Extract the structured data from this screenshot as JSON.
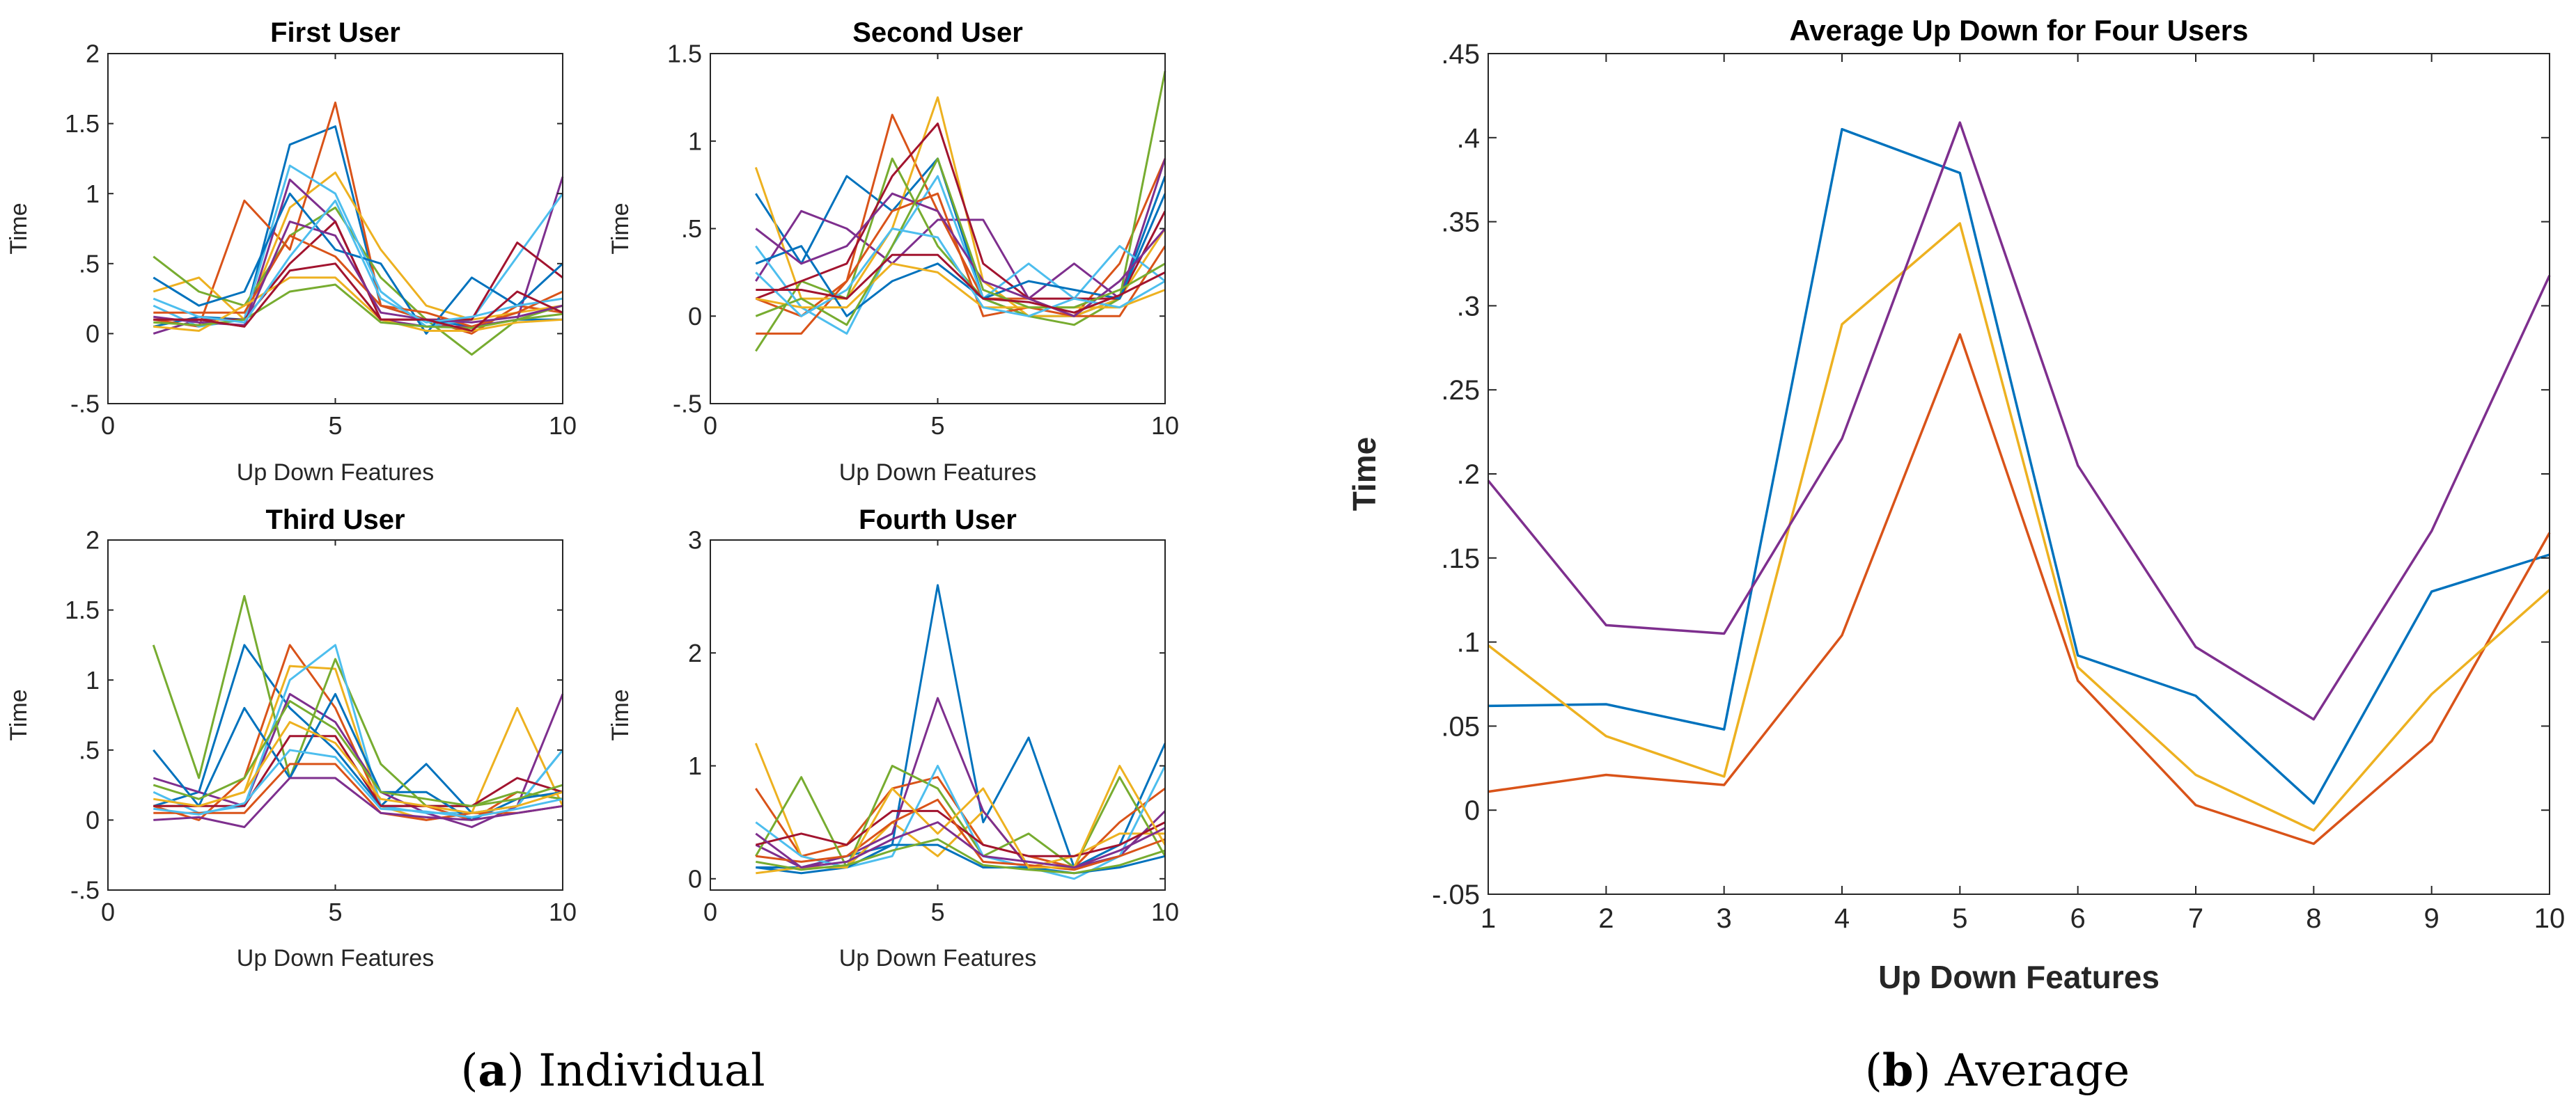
{
  "palette": [
    "#0072BD",
    "#D95319",
    "#EDB120",
    "#7E2F8E",
    "#77AC30",
    "#4DBEEE",
    "#A2142F"
  ],
  "captions": {
    "a": {
      "letter": "a",
      "text": "Individual"
    },
    "b": {
      "letter": "b",
      "text": "Average"
    }
  },
  "chart_data": [
    {
      "id": "first",
      "type": "line",
      "title": "First User",
      "xlabel": "Up Down Features",
      "ylabel": "Time",
      "xlim": [
        0,
        10
      ],
      "ylim": [
        -0.5,
        2
      ],
      "xticks": [
        0,
        5,
        10
      ],
      "yticks": [
        -0.5,
        0,
        0.5,
        1,
        1.5,
        2
      ],
      "x": [
        1,
        2,
        3,
        4,
        5,
        6,
        7,
        8,
        9,
        10
      ],
      "grid": false,
      "series": [
        {
          "values": [
            0.05,
            0.12,
            0.1,
            1.35,
            1.48,
            0.2,
            0.1,
            0.05,
            0.1,
            0.1
          ]
        },
        {
          "values": [
            0.1,
            0.05,
            0.95,
            0.6,
            1.65,
            0.2,
            0.1,
            0.0,
            0.2,
            0.15
          ]
        },
        {
          "values": [
            0.3,
            0.4,
            0.1,
            0.9,
            1.15,
            0.6,
            0.2,
            0.1,
            0.15,
            0.2
          ]
        },
        {
          "values": [
            0.0,
            0.1,
            0.05,
            1.1,
            0.8,
            0.1,
            0.05,
            0.05,
            0.1,
            1.12
          ]
        },
        {
          "values": [
            0.55,
            0.3,
            0.2,
            0.7,
            0.9,
            0.4,
            0.1,
            -0.15,
            0.1,
            0.2
          ]
        },
        {
          "values": [
            0.2,
            0.05,
            0.1,
            1.2,
            1.0,
            0.3,
            0.05,
            0.1,
            0.55,
            1.0
          ]
        },
        {
          "values": [
            0.1,
            0.1,
            0.1,
            0.5,
            0.8,
            0.1,
            0.1,
            0.1,
            0.65,
            0.4
          ]
        },
        {
          "values": [
            0.4,
            0.2,
            0.3,
            1.0,
            0.6,
            0.5,
            0.0,
            0.4,
            0.2,
            0.5
          ]
        },
        {
          "values": [
            0.15,
            0.15,
            0.15,
            0.7,
            0.55,
            0.2,
            0.15,
            0.05,
            0.15,
            0.3
          ]
        },
        {
          "values": [
            0.05,
            0.02,
            0.2,
            0.4,
            0.4,
            0.1,
            0.02,
            0.02,
            0.08,
            0.1
          ]
        },
        {
          "values": [
            0.12,
            0.08,
            0.06,
            0.8,
            0.7,
            0.15,
            0.1,
            0.08,
            0.12,
            0.2
          ]
        },
        {
          "values": [
            0.08,
            0.06,
            0.1,
            0.3,
            0.35,
            0.08,
            0.05,
            0.04,
            0.1,
            0.14
          ]
        },
        {
          "values": [
            0.25,
            0.12,
            0.08,
            0.55,
            0.95,
            0.25,
            0.08,
            0.12,
            0.2,
            0.25
          ]
        },
        {
          "values": [
            0.1,
            0.1,
            0.05,
            0.45,
            0.5,
            0.1,
            0.1,
            0.02,
            0.3,
            0.15
          ]
        }
      ]
    },
    {
      "id": "second",
      "type": "line",
      "title": "Second User",
      "xlabel": "Up Down Features",
      "ylabel": "Time",
      "xlim": [
        0,
        10
      ],
      "ylim": [
        -0.5,
        1.5
      ],
      "xticks": [
        0,
        5,
        10
      ],
      "yticks": [
        -0.5,
        0,
        0.5,
        1,
        1.5
      ],
      "x": [
        1,
        2,
        3,
        4,
        5,
        6,
        7,
        8,
        9,
        10
      ],
      "grid": false,
      "series": [
        {
          "values": [
            0.7,
            0.3,
            0.8,
            0.6,
            0.9,
            0.1,
            0.0,
            0.0,
            0.1,
            0.8
          ]
        },
        {
          "values": [
            0.1,
            0.0,
            0.2,
            1.15,
            0.6,
            0.1,
            0.1,
            0.0,
            0.3,
            0.9
          ]
        },
        {
          "values": [
            0.85,
            0.1,
            0.1,
            0.5,
            1.25,
            0.2,
            0.0,
            0.0,
            0.1,
            0.5
          ]
        },
        {
          "values": [
            0.2,
            0.6,
            0.5,
            0.3,
            0.55,
            0.55,
            0.1,
            0.3,
            0.1,
            0.9
          ]
        },
        {
          "values": [
            -0.2,
            0.2,
            0.1,
            0.9,
            0.4,
            0.1,
            0.0,
            -0.05,
            0.1,
            1.4
          ]
        },
        {
          "values": [
            0.4,
            0.05,
            -0.1,
            0.4,
            0.8,
            0.1,
            0.3,
            0.1,
            0.4,
            0.2
          ]
        },
        {
          "values": [
            0.1,
            0.2,
            0.3,
            0.8,
            1.1,
            0.3,
            0.1,
            0.1,
            0.1,
            0.6
          ]
        },
        {
          "values": [
            0.3,
            0.4,
            0.0,
            0.2,
            0.3,
            0.1,
            0.2,
            0.15,
            0.1,
            0.7
          ]
        },
        {
          "values": [
            -0.1,
            -0.1,
            0.2,
            0.6,
            0.7,
            0.0,
            0.05,
            0.0,
            0.0,
            0.4
          ]
        },
        {
          "values": [
            0.1,
            0.05,
            0.05,
            0.3,
            0.25,
            0.05,
            0.05,
            0.05,
            0.05,
            0.15
          ]
        },
        {
          "values": [
            0.5,
            0.3,
            0.4,
            0.7,
            0.6,
            0.2,
            0.1,
            0.0,
            0.2,
            0.5
          ]
        },
        {
          "values": [
            0.0,
            0.1,
            -0.05,
            0.4,
            0.9,
            0.15,
            0.05,
            0.05,
            0.15,
            0.3
          ]
        },
        {
          "values": [
            0.25,
            0.0,
            0.15,
            0.5,
            0.45,
            0.05,
            0.0,
            0.1,
            0.05,
            0.2
          ]
        },
        {
          "values": [
            0.15,
            0.15,
            0.1,
            0.35,
            0.35,
            0.1,
            0.08,
            0.02,
            0.12,
            0.25
          ]
        }
      ]
    },
    {
      "id": "third",
      "type": "line",
      "title": "Third User",
      "xlabel": "Up Down Features",
      "ylabel": "Time",
      "xlim": [
        0,
        10
      ],
      "ylim": [
        -0.5,
        2
      ],
      "xticks": [
        0,
        5,
        10
      ],
      "yticks": [
        -0.5,
        0,
        0.5,
        1,
        1.5,
        2
      ],
      "x": [
        1,
        2,
        3,
        4,
        5,
        6,
        7,
        8,
        9,
        10
      ],
      "grid": false,
      "series": [
        {
          "values": [
            0.1,
            0.2,
            1.25,
            0.8,
            0.5,
            0.1,
            0.4,
            0.05,
            0.1,
            0.5
          ]
        },
        {
          "values": [
            0.1,
            0.0,
            0.3,
            1.25,
            0.8,
            0.1,
            0.1,
            0.0,
            0.2,
            0.15
          ]
        },
        {
          "values": [
            0.1,
            0.1,
            0.2,
            1.1,
            1.08,
            0.1,
            0.0,
            0.05,
            0.8,
            0.1
          ]
        },
        {
          "values": [
            0.3,
            0.2,
            0.1,
            0.9,
            0.7,
            0.2,
            0.05,
            -0.05,
            0.1,
            0.9
          ]
        },
        {
          "values": [
            1.25,
            0.3,
            1.6,
            0.3,
            1.15,
            0.4,
            0.1,
            0.1,
            0.2,
            0.15
          ]
        },
        {
          "values": [
            0.2,
            0.05,
            0.1,
            1.0,
            1.25,
            0.1,
            0.05,
            0.05,
            0.1,
            0.5
          ]
        },
        {
          "values": [
            0.1,
            0.1,
            0.1,
            0.6,
            0.6,
            0.1,
            0.1,
            0.1,
            0.3,
            0.2
          ]
        },
        {
          "values": [
            0.5,
            0.1,
            0.8,
            0.3,
            0.9,
            0.2,
            0.2,
            0.0,
            0.15,
            0.2
          ]
        },
        {
          "values": [
            0.05,
            0.05,
            0.05,
            0.4,
            0.4,
            0.05,
            0.0,
            0.05,
            0.05,
            0.1
          ]
        },
        {
          "values": [
            0.15,
            0.1,
            0.2,
            0.7,
            0.55,
            0.15,
            0.1,
            0.05,
            0.1,
            0.2
          ]
        },
        {
          "values": [
            0.0,
            0.02,
            -0.05,
            0.3,
            0.3,
            0.05,
            0.02,
            0.0,
            0.05,
            0.1
          ]
        },
        {
          "values": [
            0.25,
            0.15,
            0.3,
            0.85,
            0.65,
            0.2,
            0.15,
            0.1,
            0.15,
            0.25
          ]
        },
        {
          "values": [
            0.08,
            0.04,
            0.12,
            0.5,
            0.45,
            0.08,
            0.06,
            0.02,
            0.08,
            0.15
          ]
        }
      ]
    },
    {
      "id": "fourth",
      "type": "line",
      "title": "Fourth User",
      "xlabel": "Up Down Features",
      "ylabel": "Time",
      "xlim": [
        0,
        10
      ],
      "ylim": [
        -0.1,
        3
      ],
      "xticks": [
        0,
        5,
        10
      ],
      "yticks": [
        0,
        1,
        2,
        3
      ],
      "x": [
        1,
        2,
        3,
        4,
        5,
        6,
        7,
        8,
        9,
        10
      ],
      "grid": false,
      "series": [
        {
          "values": [
            0.1,
            0.1,
            0.2,
            0.3,
            2.6,
            0.5,
            1.25,
            0.1,
            0.3,
            1.2
          ]
        },
        {
          "values": [
            0.8,
            0.2,
            0.3,
            0.8,
            0.9,
            0.3,
            0.2,
            0.1,
            0.5,
            0.8
          ]
        },
        {
          "values": [
            1.2,
            0.2,
            0.1,
            0.5,
            0.2,
            0.6,
            0.1,
            0.2,
            0.4,
            0.4
          ]
        },
        {
          "values": [
            0.3,
            0.1,
            0.2,
            0.4,
            1.6,
            0.6,
            0.1,
            0.1,
            0.2,
            0.6
          ]
        },
        {
          "values": [
            0.2,
            0.9,
            0.1,
            1.0,
            0.8,
            0.2,
            0.4,
            0.1,
            0.9,
            0.2
          ]
        },
        {
          "values": [
            0.5,
            0.2,
            0.1,
            0.2,
            1.0,
            0.2,
            0.1,
            0.0,
            0.2,
            1.0
          ]
        },
        {
          "values": [
            0.3,
            0.4,
            0.3,
            0.6,
            0.6,
            0.3,
            0.2,
            0.2,
            0.3,
            0.5
          ]
        },
        {
          "values": [
            0.1,
            0.05,
            0.1,
            0.3,
            0.3,
            0.1,
            0.1,
            0.05,
            0.1,
            0.2
          ]
        },
        {
          "values": [
            0.2,
            0.15,
            0.2,
            0.5,
            0.7,
            0.15,
            0.12,
            0.08,
            0.2,
            0.35
          ]
        },
        {
          "values": [
            0.05,
            0.1,
            0.1,
            0.8,
            0.4,
            0.8,
            0.1,
            0.1,
            1.0,
            0.3
          ]
        },
        {
          "values": [
            0.4,
            0.1,
            0.15,
            0.35,
            0.5,
            0.2,
            0.15,
            0.1,
            0.25,
            0.45
          ]
        },
        {
          "values": [
            0.15,
            0.08,
            0.12,
            0.25,
            0.35,
            0.12,
            0.08,
            0.05,
            0.12,
            0.25
          ]
        }
      ]
    },
    {
      "id": "average",
      "type": "line",
      "title": "Average Up Down for Four Users",
      "xlabel": "Up Down Features",
      "ylabel": "Time",
      "xlim": [
        1,
        10
      ],
      "ylim": [
        -0.05,
        0.45
      ],
      "xticks": [
        1,
        2,
        3,
        4,
        5,
        6,
        7,
        8,
        9,
        10
      ],
      "yticks": [
        -0.05,
        0,
        0.05,
        0.1,
        0.15,
        0.2,
        0.25,
        0.3,
        0.35,
        0.4,
        0.45
      ],
      "x": [
        1,
        2,
        3,
        4,
        5,
        6,
        7,
        8,
        9,
        10
      ],
      "grid": false,
      "series": [
        {
          "color": "#0072BD",
          "values": [
            0.062,
            0.063,
            0.048,
            0.405,
            0.379,
            0.092,
            0.068,
            0.004,
            0.13,
            0.152
          ]
        },
        {
          "color": "#D95319",
          "values": [
            0.011,
            0.021,
            0.015,
            0.104,
            0.283,
            0.077,
            0.003,
            -0.02,
            0.041,
            0.165
          ]
        },
        {
          "color": "#EDB120",
          "values": [
            0.098,
            0.044,
            0.02,
            0.289,
            0.349,
            0.085,
            0.021,
            -0.012,
            0.069,
            0.131
          ]
        },
        {
          "color": "#7E2F8E",
          "values": [
            0.196,
            0.11,
            0.105,
            0.221,
            0.409,
            0.205,
            0.097,
            0.054,
            0.166,
            0.318
          ]
        }
      ]
    }
  ]
}
